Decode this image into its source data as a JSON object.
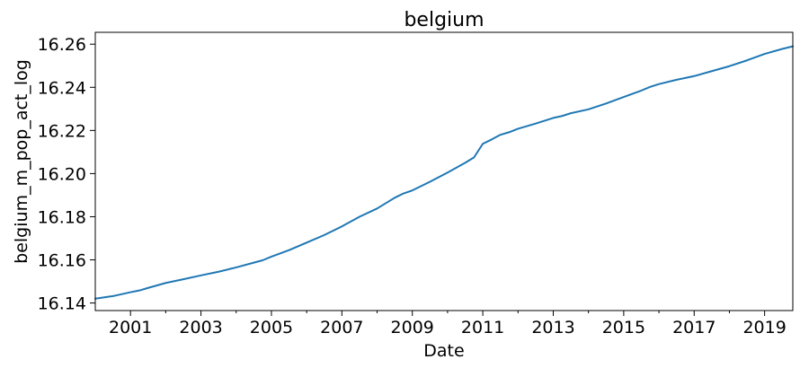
{
  "chart_data": {
    "type": "line",
    "title": "belgium",
    "xlabel": "Date",
    "ylabel": "belgium_m_pop_act_log",
    "xlim": [
      2000.0,
      2019.8
    ],
    "ylim": [
      16.1365,
      16.2655
    ],
    "x_major_ticks": [
      2001,
      2003,
      2005,
      2007,
      2009,
      2011,
      2013,
      2015,
      2017,
      2019
    ],
    "x_tick_labels": [
      "2001",
      "2003",
      "2005",
      "2007",
      "2009",
      "2011",
      "2013",
      "2015",
      "2017",
      "2019"
    ],
    "x_minor_ticks": [
      2002,
      2004,
      2006,
      2008,
      2010,
      2012,
      2014,
      2016,
      2018
    ],
    "y_ticks": [
      16.14,
      16.16,
      16.18,
      16.2,
      16.22,
      16.24,
      16.26
    ],
    "y_tick_labels": [
      "16.14",
      "16.16",
      "16.18",
      "16.20",
      "16.22",
      "16.24",
      "16.26"
    ],
    "grid": false,
    "line_color": "#1f77b4",
    "series": [
      {
        "x": [
          2000.0,
          2000.5,
          2001.0,
          2001.25,
          2001.5,
          2002.0,
          2002.5,
          2003.0,
          2003.5,
          2004.0,
          2004.5,
          2004.75,
          2005.0,
          2005.5,
          2006.0,
          2006.5,
          2007.0,
          2007.5,
          2008.0,
          2008.5,
          2008.75,
          2009.0,
          2009.5,
          2010.0,
          2010.5,
          2010.75,
          2011.0,
          2011.25,
          2011.5,
          2011.75,
          2012.0,
          2012.5,
          2013.0,
          2013.25,
          2013.5,
          2014.0,
          2014.5,
          2015.0,
          2015.5,
          2015.75,
          2016.0,
          2016.5,
          2017.0,
          2017.5,
          2018.0,
          2018.5,
          2019.0,
          2019.5,
          2019.8
        ],
        "y": [
          16.142,
          16.1432,
          16.145,
          16.1458,
          16.147,
          16.1493,
          16.151,
          16.1528,
          16.1545,
          16.1565,
          16.1587,
          16.1598,
          16.1615,
          16.1645,
          16.168,
          16.1715,
          16.1755,
          16.18,
          16.1838,
          16.1888,
          16.1908,
          16.1922,
          16.1962,
          16.2005,
          16.205,
          16.2075,
          16.2138,
          16.2158,
          16.218,
          16.2192,
          16.2208,
          16.2232,
          16.2258,
          16.2267,
          16.228,
          16.2298,
          16.2325,
          16.2355,
          16.2385,
          16.2402,
          16.2415,
          16.2435,
          16.2452,
          16.2475,
          16.2498,
          16.2525,
          16.2555,
          16.2578,
          16.259
        ]
      }
    ]
  }
}
